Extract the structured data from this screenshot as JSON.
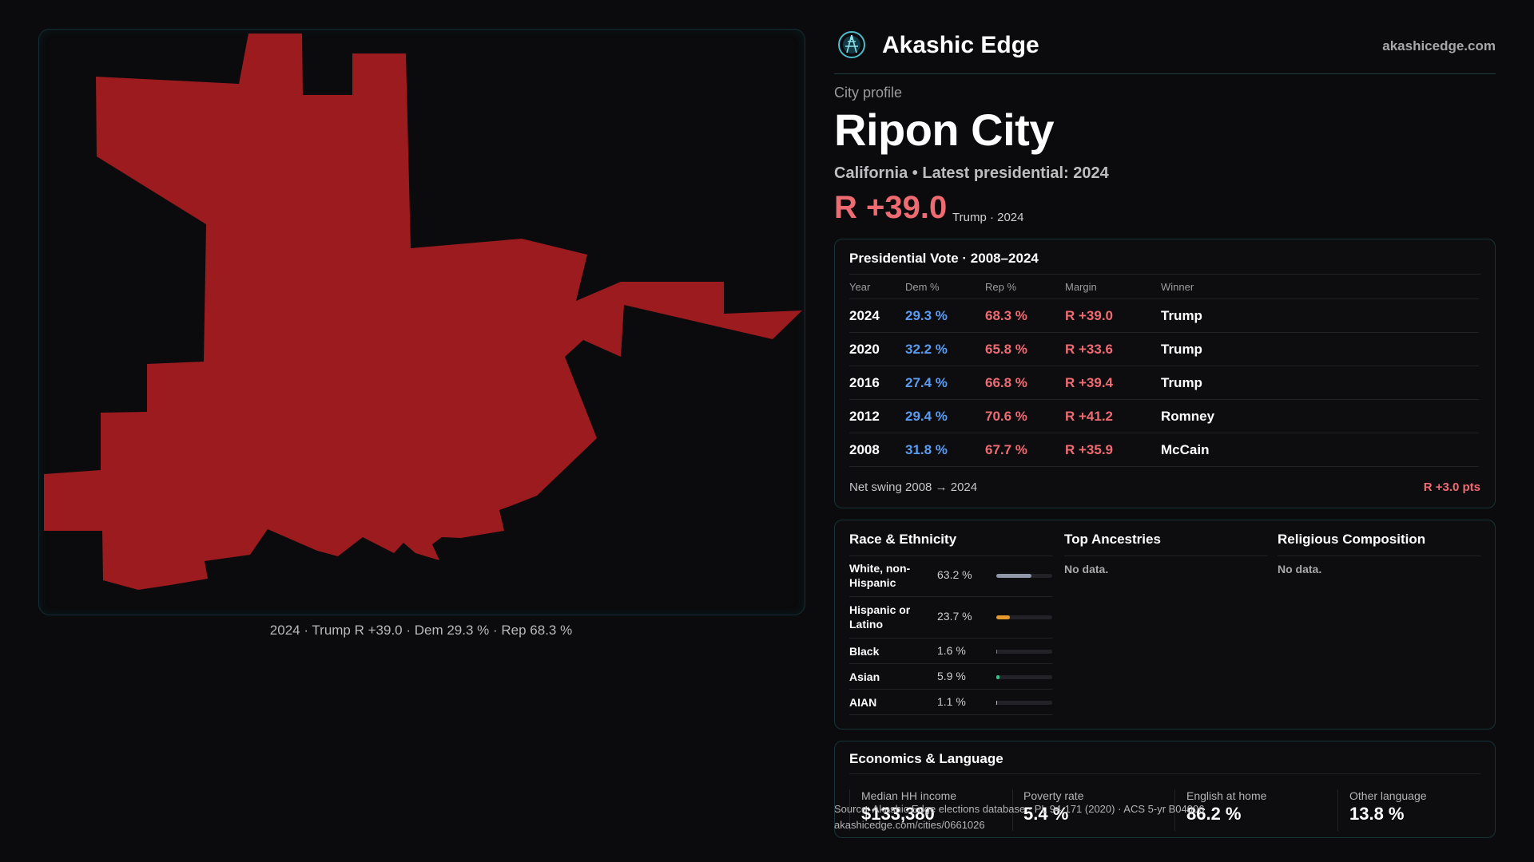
{
  "map": {
    "caption": "2024 · Trump R +39.0 · Dem 29.3 % · Rep 68.3 %",
    "fill_color": "#9b1b1e"
  },
  "header": {
    "brand": "Akashic Edge",
    "site": "akashicedge.com",
    "logo_icon": "compass-globe-icon"
  },
  "profile": {
    "kicker": "City profile",
    "name": "Ripon City",
    "subtitle": "California • Latest presidential: 2024",
    "margin": "R +39.0",
    "margin_note": "Trump · 2024"
  },
  "presidential": {
    "title": "Presidential Vote · 2008–2024",
    "columns": [
      "Year",
      "Dem %",
      "Rep %",
      "Margin",
      "Winner"
    ],
    "rows": [
      {
        "year": "2024",
        "dem": "29.3 %",
        "rep": "68.3 %",
        "margin": "R +39.0",
        "winner": "Trump"
      },
      {
        "year": "2020",
        "dem": "32.2 %",
        "rep": "65.8 %",
        "margin": "R +33.6",
        "winner": "Trump"
      },
      {
        "year": "2016",
        "dem": "27.4 %",
        "rep": "66.8 %",
        "margin": "R +39.4",
        "winner": "Trump"
      },
      {
        "year": "2012",
        "dem": "29.4 %",
        "rep": "70.6 %",
        "margin": "R +41.2",
        "winner": "Romney"
      },
      {
        "year": "2008",
        "dem": "31.8 %",
        "rep": "67.7 %",
        "margin": "R +35.9",
        "winner": "McCain"
      }
    ],
    "swing_label": "Net swing 2008 → 2024",
    "swing_value": "R +3.0 pts",
    "colors": {
      "dem": "#5a9cf0",
      "rep": "#ef6b72"
    }
  },
  "demographics": {
    "race_title": "Race & Ethnicity",
    "race": [
      {
        "name": "White, non-Hispanic",
        "pct": "63.2 %",
        "share": 0.632,
        "color": "#8e96a8"
      },
      {
        "name": "Hispanic or Latino",
        "pct": "23.7 %",
        "share": 0.237,
        "color": "#e39a2b"
      },
      {
        "name": "Black",
        "pct": "1.6 %",
        "share": 0.016,
        "color": "#7a6cf0"
      },
      {
        "name": "Asian",
        "pct": "5.9 %",
        "share": 0.059,
        "color": "#2fc48a"
      },
      {
        "name": "AIAN",
        "pct": "1.1 %",
        "share": 0.011,
        "color": "#c0c0c0"
      }
    ],
    "ancestry_title": "Top Ancestries",
    "ancestry_empty": "No data.",
    "religion_title": "Religious Composition",
    "religion_empty": "No data."
  },
  "economics": {
    "title": "Economics & Language",
    "stats": [
      {
        "label": "Median HH income",
        "value": "$133,380"
      },
      {
        "label": "Poverty rate",
        "value": "5.4 %"
      },
      {
        "label": "English at home",
        "value": "86.2 %"
      },
      {
        "label": "Other language",
        "value": "13.8 %"
      }
    ]
  },
  "footer": {
    "source": "Source: Akashic Edge elections database · PL 94-171 (2020) · ACS 5-yr B04006",
    "url": "akashicedge.com/cities/0661026"
  }
}
